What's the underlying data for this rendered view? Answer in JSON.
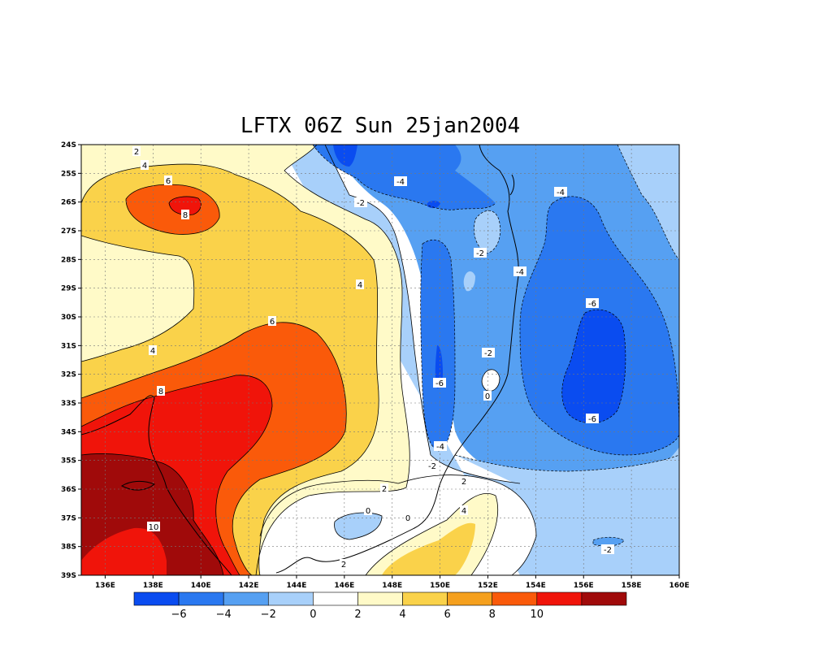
{
  "title": "LFTX 06Z Sun 25jan2004",
  "lat_labels": [
    "24S",
    "25S",
    "26S",
    "27S",
    "28S",
    "29S",
    "30S",
    "31S",
    "32S",
    "33S",
    "34S",
    "35S",
    "36S",
    "37S",
    "38S",
    "39S"
  ],
  "lon_labels": [
    "136E",
    "138E",
    "140E",
    "142E",
    "144E",
    "146E",
    "148E",
    "150E",
    "152E",
    "154E",
    "156E",
    "158E",
    "160E"
  ],
  "contour_labels": [
    {
      "text": "2"
    },
    {
      "text": "4"
    },
    {
      "text": "6"
    },
    {
      "text": "8"
    },
    {
      "text": "-4"
    },
    {
      "text": "-2"
    },
    {
      "text": "-4"
    },
    {
      "text": "-2"
    },
    {
      "text": "-4"
    },
    {
      "text": "4"
    },
    {
      "text": "6"
    },
    {
      "text": "-6"
    },
    {
      "text": "4"
    },
    {
      "text": "-2"
    },
    {
      "text": "8"
    },
    {
      "text": "-6"
    },
    {
      "text": "0"
    },
    {
      "text": "-6"
    },
    {
      "text": "-4"
    },
    {
      "text": "-2"
    },
    {
      "text": "2"
    },
    {
      "text": "2"
    },
    {
      "text": "0"
    },
    {
      "text": "0"
    },
    {
      "text": "4"
    },
    {
      "text": "10"
    },
    {
      "text": "-2"
    },
    {
      "text": "2"
    }
  ],
  "colorbar": {
    "colors": [
      "#0a4cf0",
      "#2a78f0",
      "#56a0f2",
      "#a8d0fa",
      "#ffffff",
      "#fffac8",
      "#fad24a",
      "#f5a01e",
      "#fa5a0a",
      "#f0140a",
      "#a00a0a"
    ],
    "labels": [
      "-6",
      "-4",
      "-2",
      "0",
      "2",
      "4",
      "6",
      "8",
      "10"
    ]
  },
  "colors": {
    "deep_blue": "#0a4cf0",
    "blue": "#2a78f0",
    "mid_blue": "#56a0f2",
    "light_blue": "#a8d0fa",
    "white": "#ffffff",
    "pale_yellow": "#fffac8",
    "yellow": "#fad24a",
    "orange": "#fa5a0a",
    "red": "#f0140a",
    "dark_red": "#a00a0a"
  }
}
